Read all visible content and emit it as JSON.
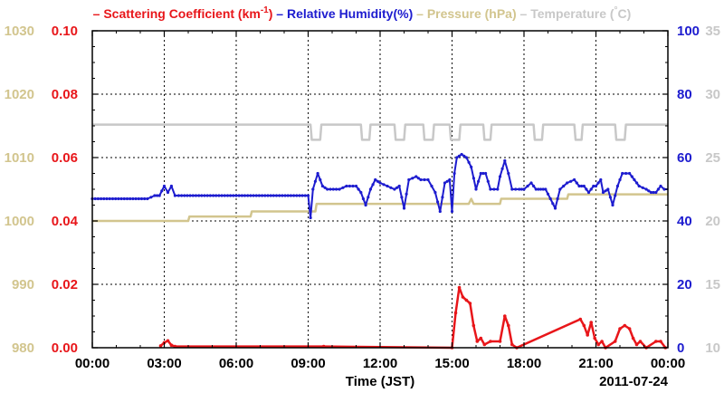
{
  "chart_data": {
    "type": "line",
    "legend": [
      {
        "dash": "–",
        "text": "Scattering Coefficient (km",
        "sup": "-1",
        "tail": ")",
        "color": "#e8161a"
      },
      {
        "dash": "–",
        "text": "Relative Humidity(%)",
        "color": "#1d1ccf"
      },
      {
        "dash": "–",
        "text": "Pressure (hPa)",
        "color": "#d2c58e"
      },
      {
        "dash": "–",
        "text": "Temperature (",
        "sup": "°",
        "tail": "C)",
        "color": "#c8c8c8"
      }
    ],
    "xlabel": "Time (JST)",
    "date_label": "2011-07-24",
    "xlim": [
      0,
      24
    ],
    "x_ticks": [
      0,
      3,
      6,
      9,
      12,
      15,
      18,
      21,
      24
    ],
    "x_tick_labels": [
      "00:00",
      "03:00",
      "06:00",
      "09:00",
      "12:00",
      "15:00",
      "18:00",
      "21:00",
      "00:00"
    ],
    "grid": true,
    "axes": {
      "pressure": {
        "side": "outer-left",
        "ylim": [
          980,
          1030
        ],
        "ticks": [
          980,
          990,
          1000,
          1010,
          1020,
          1030
        ],
        "labels": [
          "980",
          "990",
          "1000",
          "1010",
          "1020",
          "1030"
        ],
        "color": "#d2c58e"
      },
      "scattering": {
        "side": "inner-left",
        "ylim": [
          0,
          0.1
        ],
        "ticks": [
          0,
          0.02,
          0.04,
          0.06,
          0.08,
          0.1
        ],
        "labels": [
          "0.00",
          "0.02",
          "0.04",
          "0.06",
          "0.08",
          "0.10"
        ],
        "color": "#e8161a"
      },
      "humidity": {
        "side": "inner-right",
        "ylim": [
          0,
          100
        ],
        "ticks": [
          0,
          20,
          40,
          60,
          80,
          100
        ],
        "labels": [
          "0",
          "20",
          "40",
          "60",
          "80",
          "100"
        ],
        "color": "#1d1ccf"
      },
      "temperature": {
        "side": "outer-right",
        "ylim": [
          10,
          35
        ],
        "ticks": [
          10,
          15,
          20,
          25,
          30,
          35
        ],
        "labels": [
          "10",
          "15",
          "20",
          "25",
          "30",
          "35"
        ],
        "color": "#c8c8c8"
      }
    },
    "series": [
      {
        "name": "Temperature (°C)",
        "axis": "temperature",
        "color": "#c8c8c8",
        "markers": false,
        "points": [
          [
            0,
            27.6
          ],
          [
            9.1,
            27.6
          ],
          [
            9.15,
            26.4
          ],
          [
            9.5,
            26.4
          ],
          [
            9.55,
            27.6
          ],
          [
            11.2,
            27.6
          ],
          [
            11.25,
            26.4
          ],
          [
            11.55,
            26.4
          ],
          [
            11.6,
            27.6
          ],
          [
            12.6,
            27.6
          ],
          [
            12.65,
            26.4
          ],
          [
            13.0,
            26.4
          ],
          [
            13.05,
            27.6
          ],
          [
            13.8,
            27.6
          ],
          [
            13.85,
            26.4
          ],
          [
            14.2,
            26.4
          ],
          [
            14.25,
            27.6
          ],
          [
            14.9,
            27.6
          ],
          [
            14.95,
            26.4
          ],
          [
            15.3,
            26.4
          ],
          [
            15.35,
            27.6
          ],
          [
            16.3,
            27.6
          ],
          [
            16.35,
            26.4
          ],
          [
            16.6,
            26.4
          ],
          [
            16.65,
            27.6
          ],
          [
            18.4,
            27.6
          ],
          [
            18.45,
            26.4
          ],
          [
            18.75,
            26.4
          ],
          [
            18.8,
            27.6
          ],
          [
            20.1,
            27.6
          ],
          [
            20.15,
            26.4
          ],
          [
            20.4,
            26.4
          ],
          [
            20.45,
            27.6
          ],
          [
            21.8,
            27.6
          ],
          [
            21.85,
            26.4
          ],
          [
            22.2,
            26.4
          ],
          [
            22.25,
            27.6
          ],
          [
            24,
            27.6
          ]
        ]
      },
      {
        "name": "Pressure (hPa)",
        "axis": "pressure",
        "color": "#d2c58e",
        "markers": false,
        "points": [
          [
            0,
            1000
          ],
          [
            4.0,
            1000
          ],
          [
            4.05,
            1000.7
          ],
          [
            6.6,
            1000.7
          ],
          [
            6.65,
            1001.5
          ],
          [
            9.0,
            1001.5
          ],
          [
            9.05,
            1001.5
          ],
          [
            9.3,
            1001.5
          ],
          [
            9.35,
            1002.7
          ],
          [
            15.7,
            1002.7
          ],
          [
            15.8,
            1003.5
          ],
          [
            15.9,
            1002.7
          ],
          [
            17.0,
            1002.7
          ],
          [
            17.05,
            1003.5
          ],
          [
            19.8,
            1003.5
          ],
          [
            19.85,
            1004.2
          ],
          [
            24,
            1004.2
          ]
        ]
      },
      {
        "name": "Relative Humidity(%)",
        "axis": "humidity",
        "color": "#1d1ccf",
        "markers": true,
        "points": [
          [
            0,
            47
          ],
          [
            2.3,
            47
          ],
          [
            2.6,
            48
          ],
          [
            2.8,
            48
          ],
          [
            3.0,
            51
          ],
          [
            3.15,
            49
          ],
          [
            3.3,
            51
          ],
          [
            3.45,
            48
          ],
          [
            3.6,
            48
          ],
          [
            9.0,
            48
          ],
          [
            9.1,
            41
          ],
          [
            9.2,
            50
          ],
          [
            9.4,
            55
          ],
          [
            9.6,
            51
          ],
          [
            9.8,
            50
          ],
          [
            10.3,
            50
          ],
          [
            10.6,
            51
          ],
          [
            11.0,
            51
          ],
          [
            11.2,
            49
          ],
          [
            11.4,
            45
          ],
          [
            11.6,
            50
          ],
          [
            11.8,
            53
          ],
          [
            12.0,
            52
          ],
          [
            12.3,
            51
          ],
          [
            12.6,
            50
          ],
          [
            12.8,
            51
          ],
          [
            13.0,
            44
          ],
          [
            13.2,
            53
          ],
          [
            13.5,
            54
          ],
          [
            13.7,
            53
          ],
          [
            14.0,
            53
          ],
          [
            14.3,
            49
          ],
          [
            14.5,
            43
          ],
          [
            14.7,
            52
          ],
          [
            14.9,
            53
          ],
          [
            15.0,
            43
          ],
          [
            15.1,
            55
          ],
          [
            15.2,
            60
          ],
          [
            15.4,
            61
          ],
          [
            15.6,
            60
          ],
          [
            15.8,
            57
          ],
          [
            16.0,
            50
          ],
          [
            16.2,
            55
          ],
          [
            16.4,
            55
          ],
          [
            16.6,
            50
          ],
          [
            16.9,
            50
          ],
          [
            17.0,
            54
          ],
          [
            17.2,
            59
          ],
          [
            17.35,
            55
          ],
          [
            17.5,
            50
          ],
          [
            17.8,
            50
          ],
          [
            18.0,
            50
          ],
          [
            18.3,
            52
          ],
          [
            18.5,
            50
          ],
          [
            18.7,
            50
          ],
          [
            18.9,
            50
          ],
          [
            19.1,
            47
          ],
          [
            19.3,
            44
          ],
          [
            19.5,
            50
          ],
          [
            19.8,
            52
          ],
          [
            20.1,
            53
          ],
          [
            20.3,
            51
          ],
          [
            20.5,
            51
          ],
          [
            20.7,
            49
          ],
          [
            20.9,
            51
          ],
          [
            21.0,
            51
          ],
          [
            21.2,
            53
          ],
          [
            21.3,
            49
          ],
          [
            21.5,
            50
          ],
          [
            21.7,
            45
          ],
          [
            21.9,
            51
          ],
          [
            22.1,
            55
          ],
          [
            22.4,
            55
          ],
          [
            22.6,
            53
          ],
          [
            22.8,
            51
          ],
          [
            23.1,
            50
          ],
          [
            23.3,
            49
          ],
          [
            23.5,
            49
          ],
          [
            23.7,
            51
          ],
          [
            23.85,
            50
          ],
          [
            24,
            50
          ]
        ]
      },
      {
        "name": "Scattering Coefficient (km-1)",
        "axis": "scattering",
        "color": "#e8161a",
        "markers": true,
        "points": [
          [
            2.85,
            0.0006
          ],
          [
            3.0,
            0.0016
          ],
          [
            3.15,
            0.0022
          ],
          [
            3.3,
            0.0008
          ],
          [
            3.45,
            0.0004
          ],
          [
            9.65,
            0.0004
          ],
          [
            15.0,
            0.0
          ],
          [
            15.15,
            0.011
          ],
          [
            15.3,
            0.019
          ],
          [
            15.45,
            0.016
          ],
          [
            15.6,
            0.015
          ],
          [
            15.75,
            0.014
          ],
          [
            15.9,
            0.007
          ],
          [
            16.05,
            0.002
          ],
          [
            16.2,
            0.003
          ],
          [
            16.35,
            0.001
          ],
          [
            16.6,
            0.002
          ],
          [
            17.0,
            0.002
          ],
          [
            17.2,
            0.01
          ],
          [
            17.35,
            0.007
          ],
          [
            17.5,
            0.001
          ],
          [
            17.7,
            0.0
          ],
          [
            20.35,
            0.009
          ],
          [
            20.5,
            0.007
          ],
          [
            20.65,
            0.004
          ],
          [
            20.8,
            0.008
          ],
          [
            20.95,
            0.003
          ],
          [
            21.1,
            0.001
          ],
          [
            21.25,
            0.002
          ],
          [
            21.4,
            0.0
          ],
          [
            21.8,
            0.002
          ],
          [
            22.0,
            0.006
          ],
          [
            22.2,
            0.007
          ],
          [
            22.4,
            0.006
          ],
          [
            22.55,
            0.003
          ],
          [
            22.7,
            0.001
          ],
          [
            22.85,
            0.002
          ],
          [
            23.1,
            0.0
          ],
          [
            23.5,
            0.002
          ],
          [
            23.7,
            0.002
          ],
          [
            23.9,
            0.0
          ]
        ]
      }
    ]
  }
}
